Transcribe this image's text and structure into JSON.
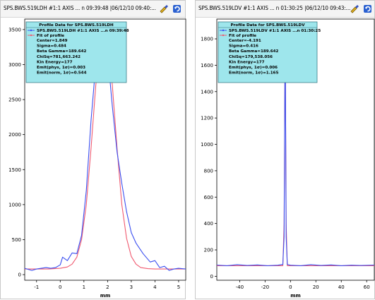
{
  "colors": {
    "data": "#3a4ff0",
    "fit": "#f05a70",
    "legend_bg": "#9ee6ec",
    "axis": "#000000"
  },
  "panels": [
    {
      "id": "left",
      "title": "SPS.BWS.519LDH #1:1 AXIS ... n 09:39:48 |06/12/10 09:40:...",
      "icons": [
        "tool-icon",
        "refresh-icon"
      ],
      "legend": {
        "header": "Profile Data for SPS.BWS.519LDH",
        "series_labels": [
          "SPS.BWS.519LDH #1:1 AXIS ...n 09:39:48",
          "Fit of profile"
        ],
        "stats": [
          "Center=1.849",
          "Sigma=0.484",
          "Beta Gamma=189.642",
          "ChiSq=781,663.242",
          "Kin Energy=177",
          "Emit(phys, 1σ)=0.003",
          "Emit(norm, 1σ)=0.544"
        ]
      },
      "chart_data": {
        "type": "line",
        "xlabel": "mm",
        "ylabel": "",
        "xlim": [
          -1.5,
          5.3
        ],
        "ylim": [
          -80,
          3650
        ],
        "xticks": [
          -1,
          0,
          1,
          2,
          3,
          4,
          5
        ],
        "yticks": [
          0,
          500,
          1000,
          1500,
          2000,
          2500,
          3000,
          3500
        ],
        "series": [
          {
            "name": "SPS.BWS.519LDH #1:1 AXIS ...n 09:39:48",
            "color": "#3a4ff0",
            "x": [
              -1.5,
              -1.2,
              -1.0,
              -0.8,
              -0.6,
              -0.4,
              -0.2,
              0.0,
              0.1,
              0.3,
              0.5,
              0.7,
              0.9,
              1.1,
              1.3,
              1.5,
              1.7,
              1.85,
              2.0,
              2.2,
              2.4,
              2.6,
              2.8,
              3.0,
              3.2,
              3.5,
              3.8,
              4.0,
              4.2,
              4.4,
              4.6,
              4.8,
              5.0,
              5.3
            ],
            "y": [
              90,
              60,
              80,
              90,
              100,
              90,
              100,
              140,
              250,
              200,
              310,
              300,
              560,
              1200,
              2200,
              3000,
              3450,
              3560,
              3150,
              2400,
              1750,
              1300,
              900,
              600,
              450,
              300,
              180,
              200,
              100,
              120,
              60,
              80,
              90,
              80
            ]
          },
          {
            "name": "Fit of profile",
            "color": "#f05a70",
            "x": [
              -1.5,
              -0.5,
              0.0,
              0.3,
              0.5,
              0.7,
              0.9,
              1.1,
              1.3,
              1.5,
              1.7,
              1.85,
              2.0,
              2.2,
              2.4,
              2.6,
              2.8,
              3.0,
              3.2,
              3.4,
              3.7,
              4.0,
              4.5,
              5.3
            ],
            "y": [
              80,
              80,
              90,
              110,
              150,
              250,
              500,
              1000,
              1800,
              2700,
              3350,
              3500,
              3350,
              2700,
              1800,
              1000,
              520,
              260,
              150,
              100,
              85,
              80,
              80,
              80
            ]
          }
        ]
      }
    },
    {
      "id": "right",
      "title": "SPS.BWS.519LDV #1:1 AXIS ... n 01:30:25 |06/12/10 09:43:...",
      "icons": [
        "tool-icon",
        "refresh-icon"
      ],
      "legend": {
        "header": "Profile Data for SPS.BWS.519LDV",
        "series_labels": [
          "SPS.BWS.519LDV #1:1 AXIS ...n 01:30:25",
          "Fit of profile"
        ],
        "stats": [
          "Center=-4.191",
          "Sigma=0.416",
          "Beta Gamma=189.642",
          "ChiSq=179,538.056",
          "Kin Energy=177",
          "Emit(phys, 1σ)=0.006",
          "Emit(norm, 1σ)=1.165"
        ]
      },
      "chart_data": {
        "type": "line",
        "xlabel": "mm",
        "ylabel": "",
        "xlim": [
          -58,
          66
        ],
        "ylim": [
          -30,
          1950
        ],
        "xticks": [
          -40,
          -20,
          0,
          20,
          40,
          60
        ],
        "yticks": [
          0,
          200,
          400,
          600,
          800,
          1000,
          1200,
          1400,
          1600,
          1800
        ],
        "series": [
          {
            "name": "SPS.BWS.519LDV #1:1 AXIS ...n 01:30:25",
            "color": "#3a4ff0",
            "x": [
              -58,
              -50,
              -42,
              -34,
              -26,
              -18,
              -10,
              -6,
              -5,
              -4.2,
              -3.4,
              -2.5,
              0,
              8,
              16,
              24,
              32,
              40,
              48,
              56,
              66
            ],
            "y": [
              85,
              80,
              88,
              82,
              86,
              80,
              84,
              90,
              300,
              1900,
              300,
              90,
              84,
              80,
              88,
              82,
              86,
              80,
              84,
              82,
              85
            ]
          },
          {
            "name": "Fit of profile",
            "color": "#f05a70",
            "x": [
              -58,
              -10,
              -6,
              -5,
              -4.2,
              -3.4,
              -2.5,
              0,
              66
            ],
            "y": [
              80,
              80,
              80,
              400,
              1850,
              400,
              80,
              80,
              80
            ]
          }
        ]
      }
    }
  ]
}
